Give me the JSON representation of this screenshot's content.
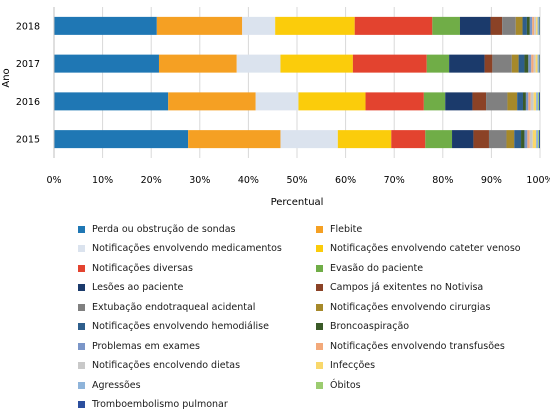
{
  "chart_data": {
    "type": "bar",
    "orientation": "horizontal",
    "stacked": "percent",
    "xlabel": "Percentual",
    "ylabel": "Ano",
    "xlim": [
      0,
      100
    ],
    "x_ticks": [
      "0%",
      "10%",
      "20%",
      "30%",
      "40%",
      "50%",
      "60%",
      "70%",
      "80%",
      "90%",
      "100%"
    ],
    "categories": [
      "2018",
      "2017",
      "2016",
      "2015"
    ],
    "legend_position": "bottom",
    "series": [
      {
        "name": "Perda ou obstrução de sondas",
        "color": "#1f77b4",
        "values": [
          21.2,
          21.6,
          23.5,
          27.6
        ]
      },
      {
        "name": "Flebite",
        "color": "#f5a023",
        "values": [
          17.6,
          16.0,
          18.0,
          19.0
        ]
      },
      {
        "name": "Notificações envolvendo medicamentos",
        "color": "#dbe3ee",
        "values": [
          6.8,
          9.0,
          8.8,
          11.8
        ]
      },
      {
        "name": "Notificações envolvendo cateter venoso",
        "color": "#fbcc0b",
        "values": [
          16.4,
          14.9,
          13.8,
          11.0
        ]
      },
      {
        "name": "Notificações diversas",
        "color": "#e3432f",
        "values": [
          16.0,
          15.2,
          12.0,
          7.0
        ]
      },
      {
        "name": "Evasão do paciente",
        "color": "#70ad47",
        "values": [
          5.7,
          4.6,
          4.4,
          5.5
        ]
      },
      {
        "name": "Lesões ao paciente",
        "color": "#1b3a6b",
        "values": [
          6.3,
          7.3,
          5.6,
          4.4
        ]
      },
      {
        "name": "Campos já exitentes no Notivisa",
        "color": "#8b4226",
        "values": [
          2.4,
          1.6,
          2.8,
          3.2
        ]
      },
      {
        "name": "Extubação endotraqueal acidental",
        "color": "#808080",
        "values": [
          2.8,
          4.0,
          4.4,
          3.6
        ]
      },
      {
        "name": "Notificações envolvendo cirurgias",
        "color": "#a6892a",
        "values": [
          1.4,
          1.4,
          2.0,
          1.6
        ]
      },
      {
        "name": "Notificações envolvendo hemodiálise",
        "color": "#2e5e8c",
        "values": [
          0.9,
          1.2,
          1.2,
          1.4
        ]
      },
      {
        "name": "Broncoaspiração",
        "color": "#3a5a28",
        "values": [
          0.6,
          0.8,
          0.6,
          0.7
        ]
      },
      {
        "name": "Problemas em exames",
        "color": "#7b96c8",
        "values": [
          0.5,
          0.6,
          0.5,
          0.6
        ]
      },
      {
        "name": "Notificações envolvendo transfusões",
        "color": "#f3a97a",
        "values": [
          0.4,
          0.5,
          0.5,
          0.5
        ]
      },
      {
        "name": "Notificações encolvendo dietas",
        "color": "#c9c9c9",
        "values": [
          0.4,
          0.4,
          0.6,
          0.6
        ]
      },
      {
        "name": "Infecções",
        "color": "#f9d86b",
        "values": [
          0.3,
          0.4,
          0.5,
          0.7
        ]
      },
      {
        "name": "Agressões",
        "color": "#8fb4da",
        "values": [
          0.3,
          0.3,
          0.4,
          0.4
        ]
      },
      {
        "name": "Óbitos",
        "color": "#9ccc70",
        "values": [
          0.1,
          0.1,
          0.2,
          0.2
        ]
      },
      {
        "name": "Tromboembolismo pulmonar",
        "color": "#2c4f9e",
        "values": [
          0.1,
          0.1,
          0.2,
          0.2
        ]
      }
    ]
  }
}
